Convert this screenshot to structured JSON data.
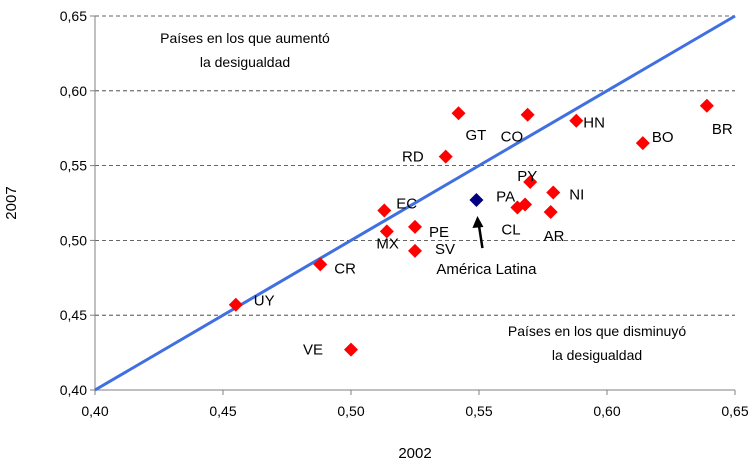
{
  "chart_data": {
    "type": "scatter",
    "title": "",
    "xlabel": "2002",
    "ylabel": "2007",
    "xlim": [
      0.4,
      0.65
    ],
    "ylim": [
      0.4,
      0.65
    ],
    "x_ticks": [
      "0,40",
      "0,45",
      "0,50",
      "0,55",
      "0,60",
      "0,65"
    ],
    "y_ticks": [
      "0,40",
      "0,45",
      "0,50",
      "0,55",
      "0,60",
      "0,65"
    ],
    "y_tick_values": [
      0.4,
      0.45,
      0.5,
      0.55,
      0.6,
      0.65
    ],
    "x_tick_values": [
      0.4,
      0.45,
      0.5,
      0.55,
      0.6,
      0.65
    ],
    "grid": "horizontal dashed",
    "reference_line": {
      "from": [
        0.4,
        0.4
      ],
      "to": [
        0.65,
        0.65
      ],
      "color": "#3f6fe0"
    },
    "points": [
      {
        "label": "UY",
        "x": 0.455,
        "y": 0.457,
        "color": "#ff0000"
      },
      {
        "label": "CR",
        "x": 0.488,
        "y": 0.484,
        "color": "#ff0000"
      },
      {
        "label": "VE",
        "x": 0.5,
        "y": 0.427,
        "color": "#ff0000"
      },
      {
        "label": "EC",
        "x": 0.513,
        "y": 0.52,
        "color": "#ff0000"
      },
      {
        "label": "MX",
        "x": 0.514,
        "y": 0.506,
        "color": "#ff0000"
      },
      {
        "label": "PE",
        "x": 0.525,
        "y": 0.509,
        "color": "#ff0000"
      },
      {
        "label": "SV",
        "x": 0.525,
        "y": 0.493,
        "color": "#ff0000"
      },
      {
        "label": "RD",
        "x": 0.537,
        "y": 0.556,
        "color": "#ff0000"
      },
      {
        "label": "GT",
        "x": 0.542,
        "y": 0.585,
        "color": "#ff0000"
      },
      {
        "label": "América Latina",
        "x": 0.549,
        "y": 0.527,
        "color": "#000080"
      },
      {
        "label": "CL",
        "x": 0.565,
        "y": 0.522,
        "color": "#ff0000"
      },
      {
        "label": "PA",
        "x": 0.568,
        "y": 0.524,
        "color": "#ff0000"
      },
      {
        "label": "CO",
        "x": 0.569,
        "y": 0.584,
        "color": "#ff0000"
      },
      {
        "label": "PY",
        "x": 0.57,
        "y": 0.539,
        "color": "#ff0000"
      },
      {
        "label": "AR",
        "x": 0.578,
        "y": 0.519,
        "color": "#ff0000"
      },
      {
        "label": "NI",
        "x": 0.579,
        "y": 0.532,
        "color": "#ff0000"
      },
      {
        "label": "HN",
        "x": 0.588,
        "y": 0.58,
        "color": "#ff0000"
      },
      {
        "label": "BO",
        "x": 0.614,
        "y": 0.565,
        "color": "#ff0000"
      },
      {
        "label": "BR",
        "x": 0.639,
        "y": 0.59,
        "color": "#ff0000"
      }
    ],
    "annotations": {
      "above_line": [
        "Países en los que aumentó",
        "la desigualdad"
      ],
      "below_line": [
        "Países en los que disminuyó",
        "la desigualdad"
      ]
    }
  }
}
